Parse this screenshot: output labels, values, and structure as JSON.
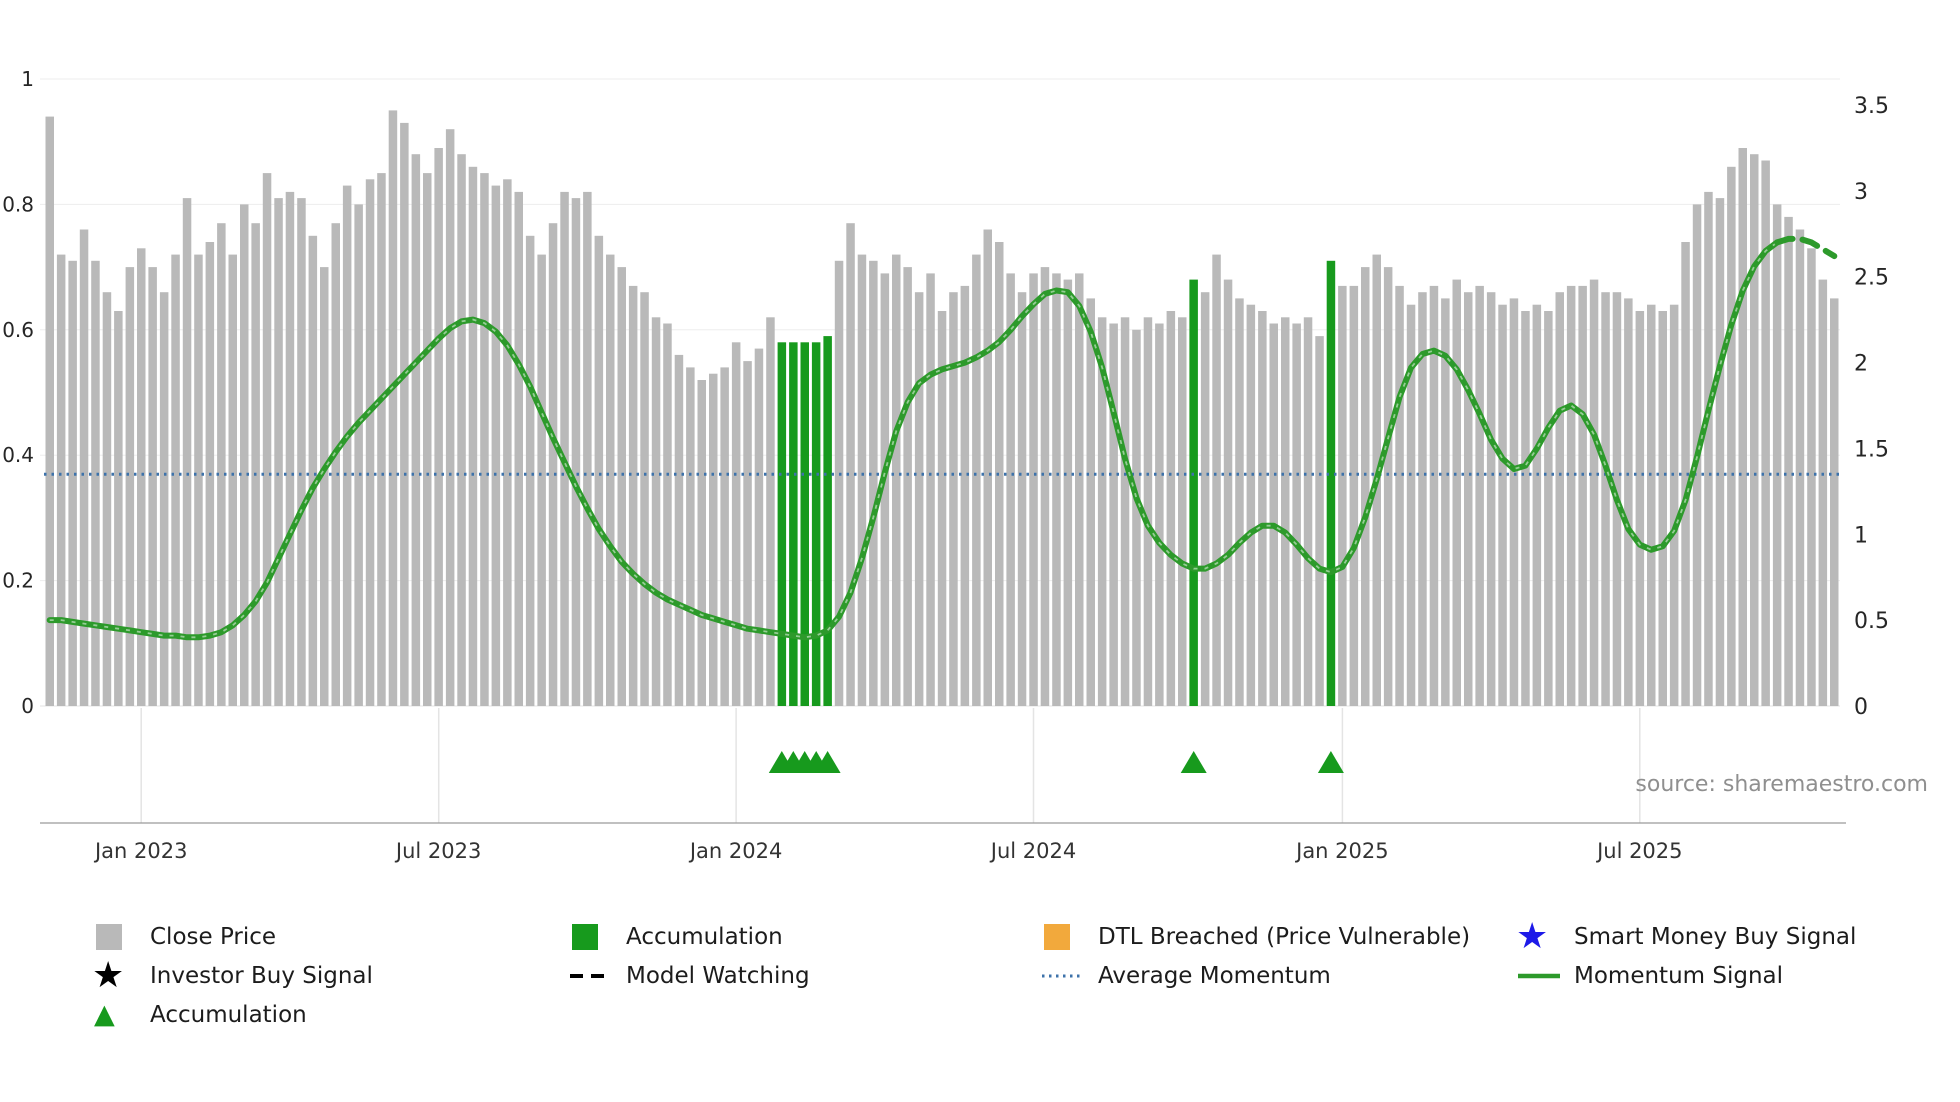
{
  "source_note": "source: sharemaestro.com",
  "colors": {
    "close_price": "#b9b9b9",
    "accumulation": "#179a1d",
    "dtl_breached": "#f2a93c",
    "smart_money": "#1d1ae8",
    "investor_buy": "#000000",
    "model_watching": "#000000",
    "average_momentum": "#3d72aa",
    "momentum_signal": "#2d9a2b",
    "axis_text": "#262626",
    "x_label_text": "#333333",
    "source_text": "#8f8f8f",
    "grid": "#ededed"
  },
  "legend": {
    "items": [
      {
        "label": "Close Price",
        "marker": "square",
        "color": "#b9b9b9"
      },
      {
        "label": "Accumulation",
        "marker": "square",
        "color": "#179a1d"
      },
      {
        "label": "DTL Breached (Price Vulnerable)",
        "marker": "square",
        "color": "#f2a93c"
      },
      {
        "label": "Smart Money Buy Signal",
        "marker": "star",
        "color": "#1d1ae8"
      },
      {
        "label": "Investor Buy Signal",
        "marker": "star",
        "color": "#000000"
      },
      {
        "label": "Model Watching",
        "marker": "dashed-line",
        "color": "#000000"
      },
      {
        "label": "Average Momentum",
        "marker": "dotted-line",
        "color": "#3d72aa"
      },
      {
        "label": "Momentum Signal",
        "marker": "solid-line",
        "color": "#2d9a2b"
      },
      {
        "label": "Accumulation",
        "marker": "triangle",
        "color": "#179a1d"
      }
    ]
  },
  "chart_data": {
    "type": "bar+line",
    "title": "",
    "x_tick_labels": [
      "Jan 2023",
      "Jul 2023",
      "Jan 2024",
      "Jul 2024",
      "Jan 2025",
      "Jul 2025"
    ],
    "x_tick_indices": [
      8,
      34,
      60,
      86,
      113,
      139
    ],
    "left_axis": {
      "series": "Close Price (normalised)",
      "tick_labels": [
        "0",
        "0.2",
        "0.4",
        "0.6",
        "0.8",
        "1"
      ],
      "tick_values": [
        0,
        0.2,
        0.4,
        0.6,
        0.8,
        1
      ],
      "range": [
        0,
        1
      ]
    },
    "right_axis": {
      "series": "Momentum",
      "tick_labels": [
        "0",
        "0.5",
        "1",
        "1.5",
        "2",
        "2.5",
        "3",
        "3.5"
      ],
      "tick_values": [
        0,
        0.5,
        1,
        1.5,
        2,
        2.5,
        3,
        3.5
      ],
      "range": [
        0,
        3.5
      ]
    },
    "close_price": [
      0.94,
      0.72,
      0.71,
      0.76,
      0.71,
      0.66,
      0.63,
      0.7,
      0.73,
      0.7,
      0.66,
      0.72,
      0.81,
      0.72,
      0.74,
      0.77,
      0.72,
      0.8,
      0.77,
      0.85,
      0.81,
      0.82,
      0.81,
      0.75,
      0.7,
      0.77,
      0.83,
      0.8,
      0.84,
      0.85,
      0.95,
      0.93,
      0.88,
      0.85,
      0.89,
      0.92,
      0.88,
      0.86,
      0.85,
      0.83,
      0.84,
      0.82,
      0.75,
      0.72,
      0.77,
      0.82,
      0.81,
      0.82,
      0.75,
      0.72,
      0.7,
      0.67,
      0.66,
      0.62,
      0.61,
      0.56,
      0.54,
      0.52,
      0.53,
      0.54,
      0.58,
      0.55,
      0.57,
      0.62,
      0.58,
      0.58,
      0.58,
      0.58,
      0.59,
      0.71,
      0.77,
      0.72,
      0.71,
      0.69,
      0.72,
      0.7,
      0.66,
      0.69,
      0.63,
      0.66,
      0.67,
      0.72,
      0.76,
      0.74,
      0.69,
      0.66,
      0.69,
      0.7,
      0.69,
      0.68,
      0.69,
      0.65,
      0.62,
      0.61,
      0.62,
      0.6,
      0.62,
      0.61,
      0.63,
      0.62,
      0.68,
      0.66,
      0.72,
      0.68,
      0.65,
      0.64,
      0.63,
      0.61,
      0.62,
      0.61,
      0.62,
      0.59,
      0.71,
      0.67,
      0.67,
      0.7,
      0.72,
      0.7,
      0.67,
      0.64,
      0.66,
      0.67,
      0.65,
      0.68,
      0.66,
      0.67,
      0.66,
      0.64,
      0.65,
      0.63,
      0.64,
      0.63,
      0.66,
      0.67,
      0.67,
      0.68,
      0.66,
      0.66,
      0.65,
      0.63,
      0.64,
      0.63,
      0.64,
      0.74,
      0.8,
      0.82,
      0.81,
      0.86,
      0.89,
      0.88,
      0.87,
      0.8,
      0.78,
      0.76,
      0.73,
      0.68,
      0.65
    ],
    "accumulation_bar_indices": [
      64,
      65,
      66,
      67,
      68,
      100,
      112
    ],
    "accumulation_marker_indices": [
      64,
      65,
      66,
      67,
      68,
      100,
      112
    ],
    "momentum": [
      0.5,
      0.5,
      0.49,
      0.48,
      0.47,
      0.46,
      0.45,
      0.44,
      0.43,
      0.42,
      0.41,
      0.41,
      0.4,
      0.4,
      0.41,
      0.43,
      0.47,
      0.53,
      0.61,
      0.72,
      0.86,
      1.0,
      1.14,
      1.27,
      1.38,
      1.48,
      1.57,
      1.65,
      1.72,
      1.79,
      1.86,
      1.93,
      2.0,
      2.07,
      2.14,
      2.2,
      2.24,
      2.25,
      2.23,
      2.18,
      2.1,
      1.99,
      1.86,
      1.71,
      1.56,
      1.42,
      1.28,
      1.15,
      1.03,
      0.93,
      0.84,
      0.77,
      0.71,
      0.66,
      0.62,
      0.59,
      0.56,
      0.53,
      0.51,
      0.49,
      0.47,
      0.45,
      0.44,
      0.43,
      0.42,
      0.41,
      0.4,
      0.41,
      0.44,
      0.52,
      0.66,
      0.86,
      1.1,
      1.36,
      1.6,
      1.77,
      1.88,
      1.93,
      1.96,
      1.98,
      2.0,
      2.03,
      2.07,
      2.12,
      2.19,
      2.27,
      2.34,
      2.4,
      2.42,
      2.41,
      2.33,
      2.18,
      1.97,
      1.71,
      1.44,
      1.21,
      1.05,
      0.95,
      0.88,
      0.83,
      0.8,
      0.8,
      0.83,
      0.88,
      0.95,
      1.01,
      1.05,
      1.05,
      1.01,
      0.94,
      0.86,
      0.8,
      0.78,
      0.81,
      0.92,
      1.1,
      1.32,
      1.56,
      1.8,
      1.97,
      2.05,
      2.07,
      2.04,
      1.96,
      1.84,
      1.7,
      1.55,
      1.44,
      1.38,
      1.4,
      1.5,
      1.62,
      1.72,
      1.75,
      1.7,
      1.58,
      1.4,
      1.2,
      1.03,
      0.94,
      0.91,
      0.93,
      1.02,
      1.2,
      1.45,
      1.72,
      1.98,
      2.22,
      2.42,
      2.56,
      2.65,
      2.7,
      2.72,
      2.72,
      2.7,
      2.66,
      2.62
    ],
    "momentum_dashed_from_index": 151,
    "average_momentum": 1.35
  }
}
